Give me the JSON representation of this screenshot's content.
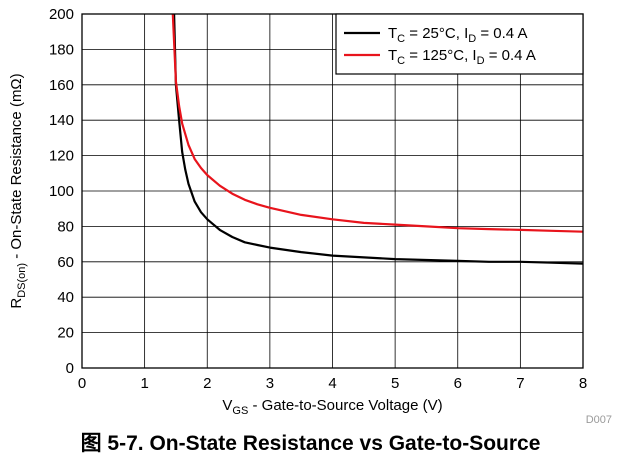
{
  "chart_data": {
    "type": "line",
    "xlabel_main": "V",
    "xlabel_sub": "GS",
    "xlabel_rest": " - Gate-to-Source Voltage (V)",
    "ylabel_main": "R",
    "ylabel_sub": "DS(on)",
    "ylabel_rest": " - On-State Resistance (mΩ)",
    "xlim": [
      0,
      8
    ],
    "ylim": [
      0,
      200
    ],
    "xticks": [
      0,
      1,
      2,
      3,
      4,
      5,
      6,
      7,
      8
    ],
    "yticks": [
      0,
      20,
      40,
      60,
      80,
      100,
      120,
      140,
      160,
      180,
      200
    ],
    "grid": true,
    "legend_position": "top-right",
    "series": [
      {
        "legend": {
          "t": "T",
          "t_sub": "C",
          "mid": " = 25°C, I",
          "i_sub": "D",
          "end": " = 0.4 A"
        },
        "color": "#000000",
        "x": [
          1.47,
          1.5,
          1.55,
          1.6,
          1.65,
          1.7,
          1.8,
          1.9,
          2.0,
          2.1,
          2.2,
          2.4,
          2.6,
          2.8,
          3.0,
          3.5,
          4.0,
          4.5,
          5.0,
          5.5,
          6.0,
          6.5,
          7.0,
          7.5,
          8.0
        ],
        "y": [
          200,
          160,
          140,
          122,
          112,
          104,
          94,
          88,
          84,
          81,
          78,
          74,
          71,
          69.5,
          68,
          65.5,
          63.5,
          62.5,
          61.5,
          61,
          60.5,
          60,
          60,
          59.5,
          59
        ]
      },
      {
        "legend": {
          "t": "T",
          "t_sub": "C",
          "mid": " = 125°C, I",
          "i_sub": "D",
          "end": " = 0.4 A"
        },
        "color": "#e8141c",
        "x": [
          1.45,
          1.5,
          1.55,
          1.6,
          1.7,
          1.8,
          1.9,
          2.0,
          2.2,
          2.4,
          2.6,
          2.8,
          3.0,
          3.5,
          4.0,
          4.5,
          5.0,
          5.5,
          6.0,
          6.5,
          7.0,
          7.5,
          8.0
        ],
        "y": [
          200,
          162,
          148,
          138,
          126,
          118,
          113,
          109,
          103,
          98.5,
          95,
          92.5,
          90.5,
          86.5,
          84,
          82,
          81,
          80,
          79,
          78.5,
          78,
          77.5,
          77
        ]
      }
    ]
  },
  "figure_id": "D007",
  "caption": "图 5-7. On-State Resistance vs Gate-to-Source"
}
